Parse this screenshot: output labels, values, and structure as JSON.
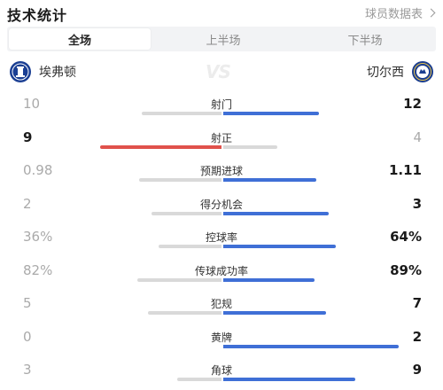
{
  "header": {
    "title": "技术统计",
    "report_link": "球员数据表"
  },
  "tabs": [
    {
      "label": "全场",
      "active": true
    },
    {
      "label": "上半场",
      "active": false
    },
    {
      "label": "下半场",
      "active": false
    }
  ],
  "teams": {
    "home": {
      "name": "埃弗顿",
      "crest_icon": "everton-crest-icon"
    },
    "away": {
      "name": "切尔西",
      "crest_icon": "chelsea-crest-icon"
    },
    "vs_text": "VS"
  },
  "colors": {
    "blue": "#3f6fd6",
    "red": "#e0514b",
    "grey_bar": "#d9d9d9"
  },
  "stats": [
    {
      "label": "射门",
      "home": "10",
      "away": "12",
      "home_num": 10,
      "away_num": 12,
      "leader": "away"
    },
    {
      "label": "射正",
      "home": "9",
      "away": "4",
      "home_num": 9,
      "away_num": 4,
      "leader": "home"
    },
    {
      "label": "预期进球",
      "home": "0.98",
      "away": "1.11",
      "home_num": 0.98,
      "away_num": 1.11,
      "leader": "away"
    },
    {
      "label": "得分机会",
      "home": "2",
      "away": "3",
      "home_num": 2,
      "away_num": 3,
      "leader": "away"
    },
    {
      "label": "控球率",
      "home": "36%",
      "away": "64%",
      "home_num": 36,
      "away_num": 64,
      "leader": "away"
    },
    {
      "label": "传球成功率",
      "home": "82%",
      "away": "89%",
      "home_num": 82,
      "away_num": 89,
      "leader": "away"
    },
    {
      "label": "犯规",
      "home": "5",
      "away": "7",
      "home_num": 5,
      "away_num": 7,
      "leader": "away"
    },
    {
      "label": "黄牌",
      "home": "0",
      "away": "2",
      "home_num": 0,
      "away_num": 2,
      "leader": "away"
    },
    {
      "label": "角球",
      "home": "3",
      "away": "9",
      "home_num": 3,
      "away_num": 9,
      "leader": "away"
    }
  ]
}
